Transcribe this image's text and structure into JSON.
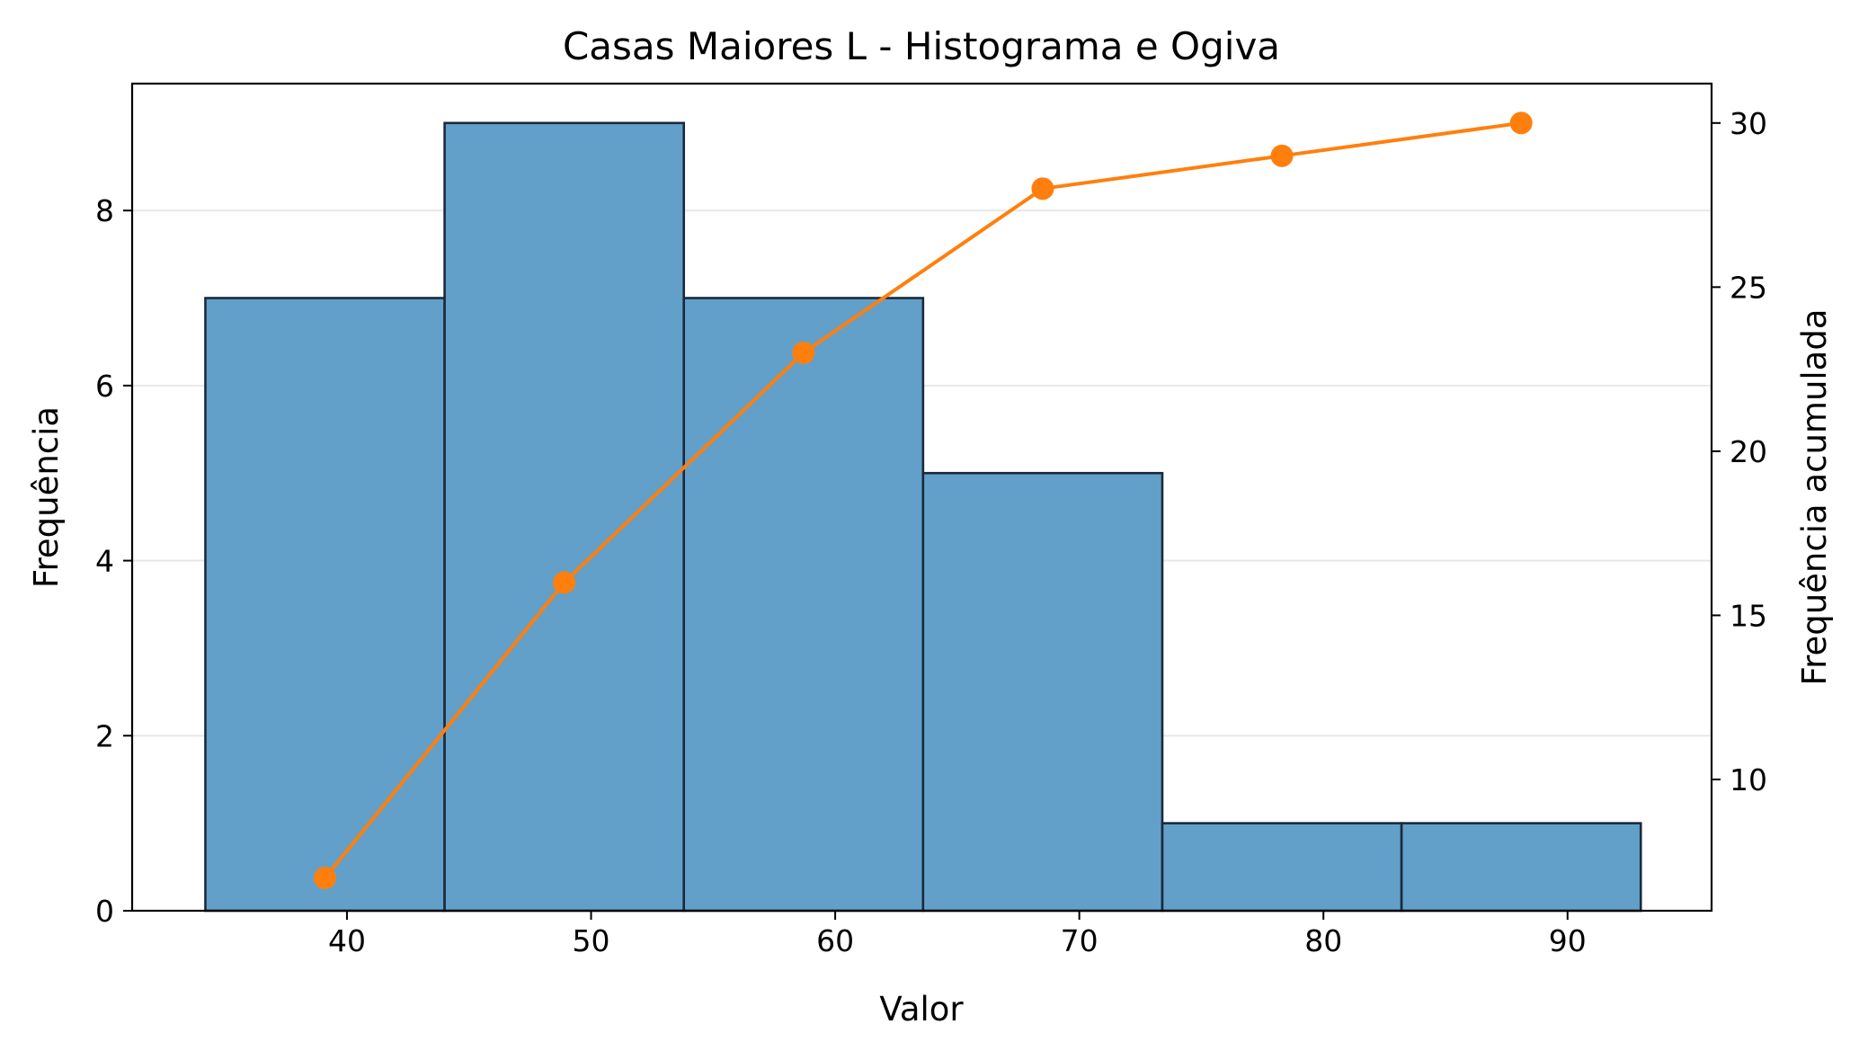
{
  "chart_data": {
    "type": "bar",
    "title": "Casas Maiores L - Histograma e Ogiva",
    "xlabel": "Valor",
    "ylabel": "Frequência",
    "y2label": "Frequência acumulada",
    "bins": [
      {
        "start": 34.2,
        "end": 44.0,
        "count": 7
      },
      {
        "start": 44.0,
        "end": 53.8,
        "count": 9
      },
      {
        "start": 53.8,
        "end": 63.6,
        "count": 7
      },
      {
        "start": 63.6,
        "end": 73.4,
        "count": 5
      },
      {
        "start": 73.4,
        "end": 83.2,
        "count": 1
      },
      {
        "start": 83.2,
        "end": 93.0,
        "count": 1
      }
    ],
    "ogive": {
      "x": [
        39.1,
        48.9,
        58.7,
        68.5,
        78.3,
        88.1
      ],
      "y": [
        7,
        16,
        23,
        28,
        29,
        30
      ]
    },
    "xlim": [
      31.2,
      95.9
    ],
    "ylim": [
      0,
      9.45
    ],
    "y2lim": [
      6.0,
      31.2
    ],
    "xticks": [
      40,
      50,
      60,
      70,
      80,
      90
    ],
    "yticks": [
      0,
      2,
      4,
      6,
      8
    ],
    "y2ticks": [
      10,
      15,
      20,
      25,
      30
    ],
    "grid": "horizontal",
    "colors": {
      "bars": "#62a0ca",
      "bar_edge": "#1a2a3a",
      "ogive": "#ff7f0e",
      "grid": "#e6e6e6"
    }
  }
}
